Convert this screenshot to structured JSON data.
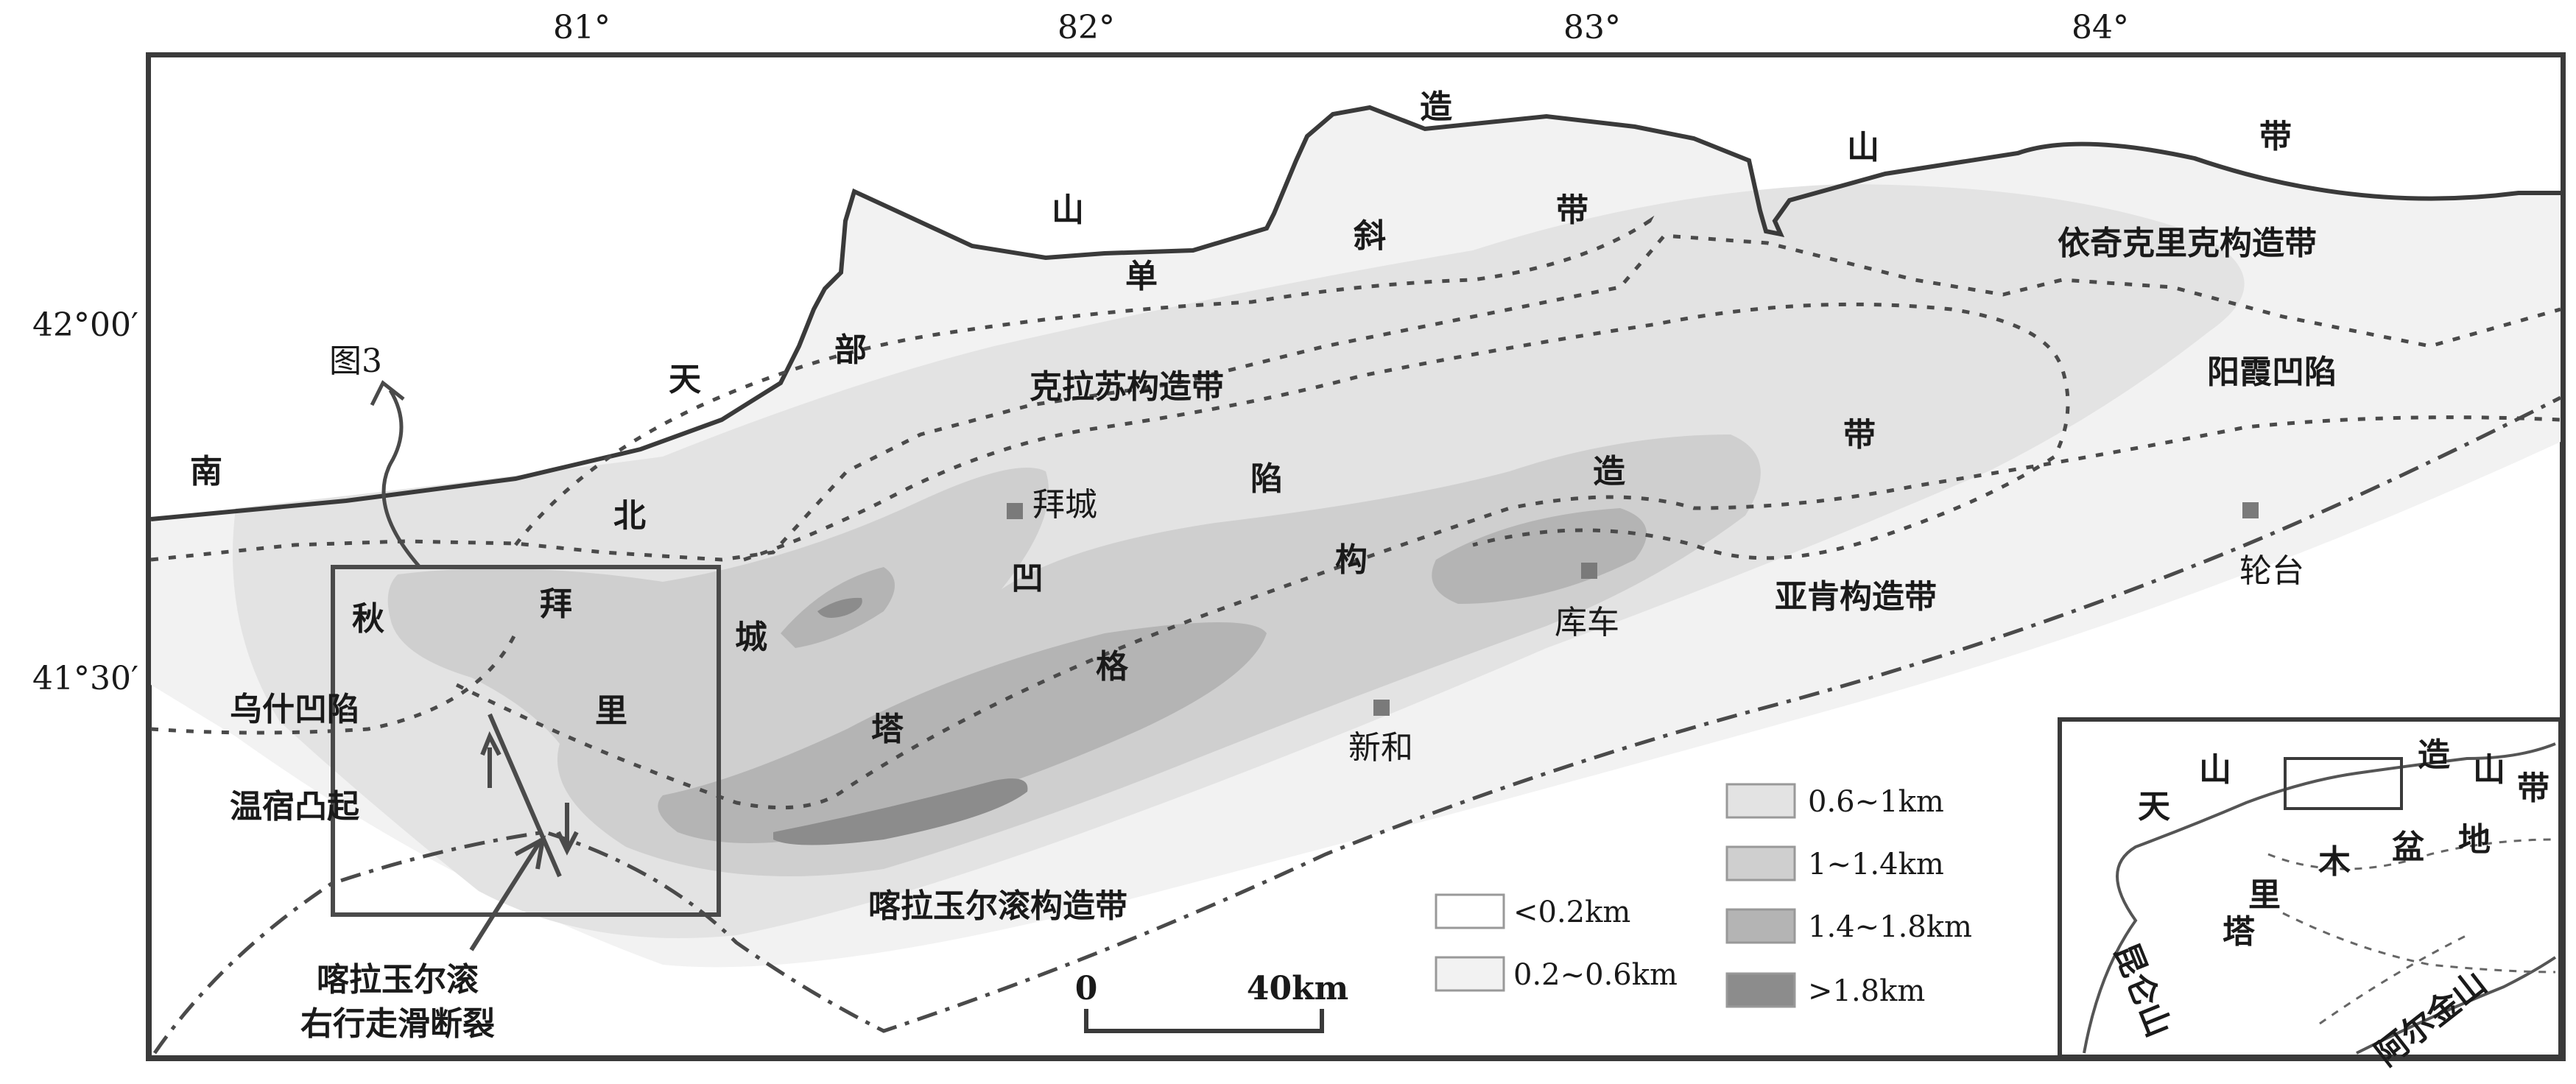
{
  "ticks": {
    "top": [
      "81°",
      "82°",
      "83°",
      "84°"
    ],
    "left": [
      "42°00′",
      "41°30′"
    ]
  },
  "labels": {
    "tianshan": [
      "南",
      "天",
      "山",
      "造",
      "山",
      "带"
    ],
    "basin": [
      "北",
      "部",
      "单",
      "斜",
      "带"
    ],
    "depression": [
      "秋",
      "拜",
      "城",
      "里",
      "塔",
      "格",
      "凹",
      "陷",
      "构",
      "造",
      "带"
    ],
    "kelasu": "克拉苏构造带",
    "yiqikelike": "依奇克里克构造带",
    "yangxia": "阳霞凹陷",
    "yaken": "亚肯构造带",
    "wushi": "乌什凹陷",
    "wensu": "温宿凸起",
    "kalayuergun": "喀拉玉尔滚构造带",
    "fig3": "图3",
    "fault_line1": "喀拉玉尔滚",
    "fault_line2": "右行走滑断裂"
  },
  "towns": {
    "baicheng": "拜城",
    "kuche": "库车",
    "xinhe": "新和",
    "luntai": "轮台"
  },
  "legend": {
    "items": [
      {
        "label": "<0.2km",
        "color": "#ffffff"
      },
      {
        "label": "0.2~0.6km",
        "color": "#f2f2f2"
      },
      {
        "label": "0.6~1km",
        "color": "#e3e3e3"
      },
      {
        "label": "1~1.4km",
        "color": "#cfcfcf"
      },
      {
        "label": "1.4~1.8km",
        "color": "#b4b4b4"
      },
      {
        "label": ">1.8km",
        "color": "#8c8c8c"
      }
    ]
  },
  "scale": {
    "start": "0",
    "end": "40km"
  },
  "inset": {
    "labels": [
      "天",
      "山",
      "造",
      "山",
      "带",
      "塔",
      "里",
      "木",
      "盆",
      "地",
      "昆仑山",
      "阿尔金山"
    ]
  }
}
